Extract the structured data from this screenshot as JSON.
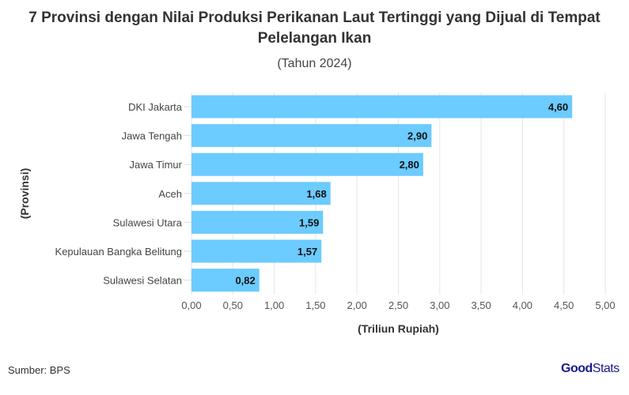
{
  "chart_data": {
    "type": "bar",
    "orientation": "horizontal",
    "title": "7 Provinsi dengan Nilai Produksi Perikanan Laut Tertinggi yang Dijual di Tempat Pelelangan Ikan",
    "subtitle": "(Tahun 2024)",
    "xlabel": "(Triliun Rupiah)",
    "ylabel": "(Provinsi)",
    "categories": [
      "DKI Jakarta",
      "Jawa Tengah",
      "Jawa Timur",
      "Aceh",
      "Sulawesi Utara",
      "Kepulauan Bangka Belitung",
      "Sulawesi Selatan"
    ],
    "values": [
      4.6,
      2.9,
      2.8,
      1.68,
      1.59,
      1.57,
      0.82
    ],
    "data_labels": [
      "4,60",
      "2,90",
      "2,80",
      "1,68",
      "1,59",
      "1,57",
      "0,82"
    ],
    "xlim": [
      0,
      5
    ],
    "x_ticks": [
      0,
      0.5,
      1,
      1.5,
      2,
      2.5,
      3,
      3.5,
      4,
      4.5,
      5
    ],
    "x_tick_labels": [
      "0,00",
      "0,50",
      "1,00",
      "1,50",
      "2,00",
      "2,50",
      "3,00",
      "3,50",
      "4,00",
      "4,50",
      "5,00"
    ],
    "grid": true,
    "bar_color": "#6ccbff"
  },
  "footer": {
    "source": "Sumber: BPS",
    "logo_bold": "Good",
    "logo_rest": "Stats"
  }
}
